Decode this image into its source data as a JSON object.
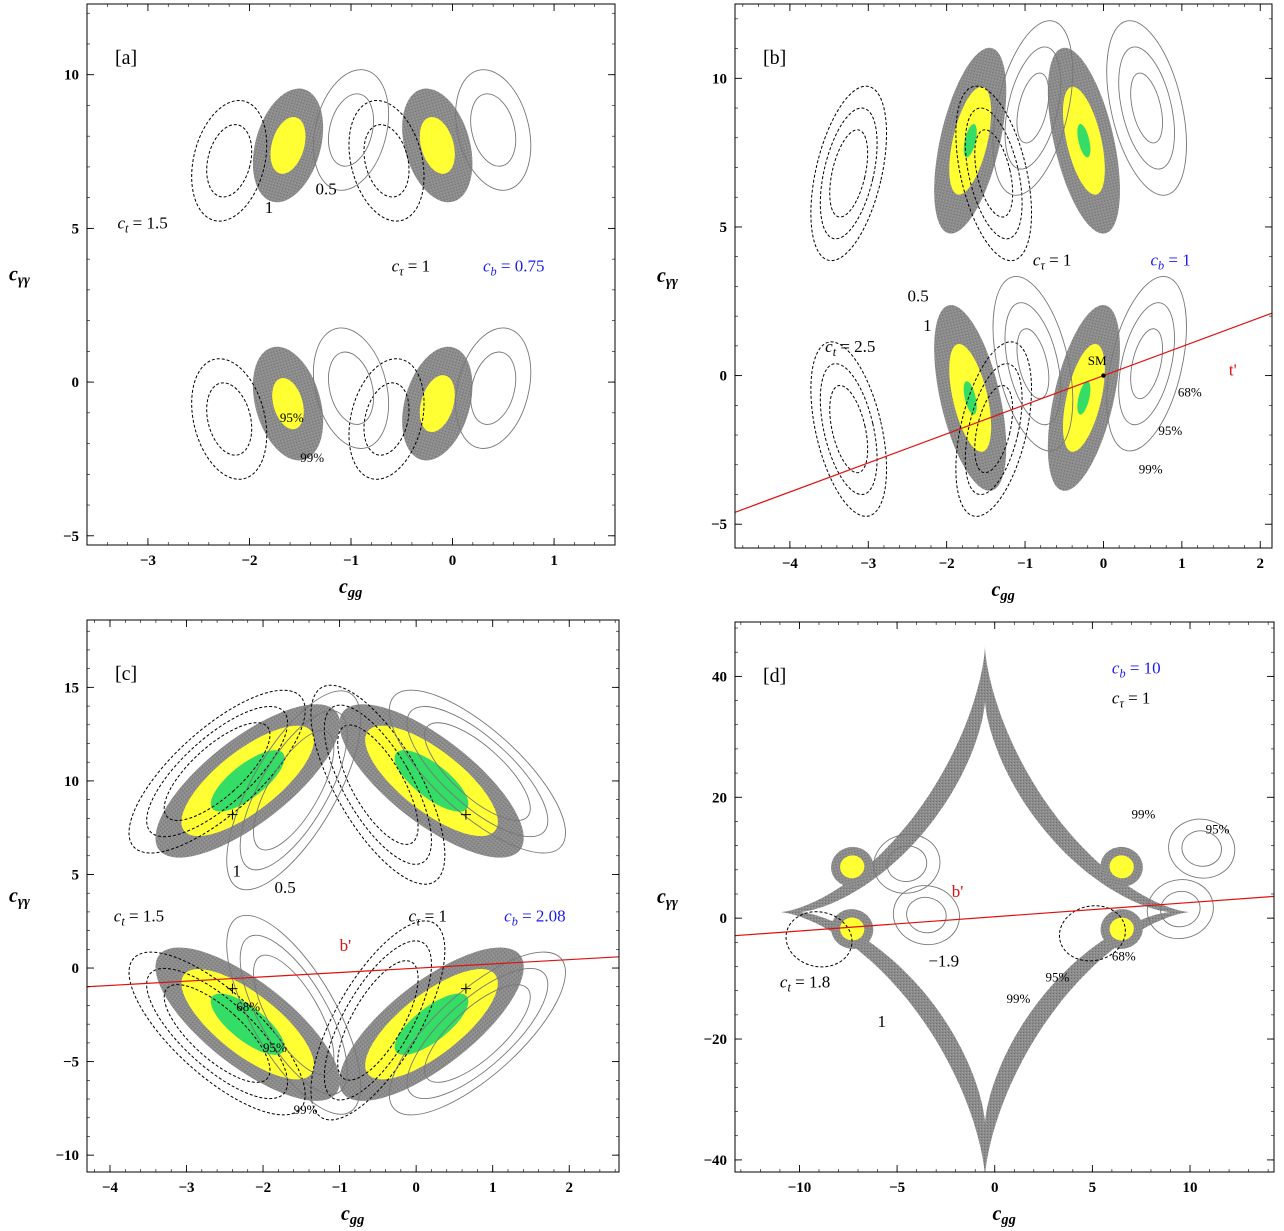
{
  "colors": {
    "dark_band": "#8c8c8c",
    "yellow_band": "#ffff33",
    "green_band": "#33dd66",
    "ref_line": "#e01010",
    "blue_text": "#1a1aee",
    "frame": "#000000"
  },
  "chart_data": [
    {
      "id": "a",
      "type": "contour",
      "panel_label": "[a]",
      "xlabel": "c_gg",
      "ylabel": "c_γγ",
      "xlim": [
        -3.6,
        1.6
      ],
      "ylim": [
        -5.3,
        12.3
      ],
      "xticks": [
        -3,
        -2,
        -1,
        0,
        1
      ],
      "yticks": [
        -5,
        0,
        5,
        10
      ],
      "texts": [
        {
          "t": "c_t = 1.5",
          "x": -3.3,
          "y": 5.0
        },
        {
          "t": "1",
          "x": -1.85,
          "y": 5.5
        },
        {
          "t": "0.5",
          "x": -1.35,
          "y": 6.1
        },
        {
          "t": "c_τ = 1",
          "x": -0.6,
          "y": 3.6
        },
        {
          "t": "c_b = 0.75",
          "x": 0.3,
          "y": 3.6,
          "blue": true
        },
        {
          "t": "95%",
          "x": -1.7,
          "y": -1.3,
          "small": true
        },
        {
          "t": "99%",
          "x": -1.5,
          "y": -2.6,
          "small": true
        }
      ],
      "regions": [
        {
          "cx": -1.62,
          "cy": 7.7,
          "rx": 0.32,
          "ry": 1.9,
          "rot": 16,
          "bands": [
            1.0,
            0.5
          ]
        },
        {
          "cx": -0.15,
          "cy": 7.7,
          "rx": 0.32,
          "ry": 1.9,
          "rot": -16,
          "bands": [
            1.0,
            0.5
          ]
        },
        {
          "cx": -1.62,
          "cy": -0.7,
          "rx": 0.32,
          "ry": 1.9,
          "rot": -16,
          "bands": [
            1.0,
            0.45
          ]
        },
        {
          "cx": -0.15,
          "cy": -0.7,
          "rx": 0.32,
          "ry": 1.9,
          "rot": 16,
          "bands": [
            1.0,
            0.5
          ]
        }
      ],
      "contours": [
        {
          "cx": -2.2,
          "cy": 7.2,
          "rx": 0.35,
          "ry": 2.0,
          "rot": 14,
          "dashed": true,
          "scales": [
            1.0,
            0.6
          ]
        },
        {
          "cx": -0.65,
          "cy": 7.2,
          "rx": 0.35,
          "ry": 2.0,
          "rot": -14,
          "dashed": true,
          "scales": [
            1.0,
            0.6
          ]
        },
        {
          "cx": -1.0,
          "cy": 8.2,
          "rx": 0.35,
          "ry": 2.0,
          "rot": 14,
          "dashed": false,
          "scales": [
            1.0,
            0.6
          ]
        },
        {
          "cx": 0.4,
          "cy": 8.2,
          "rx": 0.35,
          "ry": 2.0,
          "rot": -14,
          "dashed": false,
          "scales": [
            1.0,
            0.6
          ]
        },
        {
          "cx": -2.2,
          "cy": -1.2,
          "rx": 0.35,
          "ry": 2.0,
          "rot": -14,
          "dashed": true,
          "scales": [
            1.0,
            0.6
          ]
        },
        {
          "cx": -0.65,
          "cy": -1.2,
          "rx": 0.35,
          "ry": 2.0,
          "rot": 14,
          "dashed": true,
          "scales": [
            1.0,
            0.6
          ]
        },
        {
          "cx": -1.0,
          "cy": -0.2,
          "rx": 0.35,
          "ry": 2.0,
          "rot": -14,
          "dashed": false,
          "scales": [
            1.0,
            0.6
          ]
        },
        {
          "cx": 0.4,
          "cy": -0.2,
          "rx": 0.35,
          "ry": 2.0,
          "rot": 14,
          "dashed": false,
          "scales": [
            1.0,
            0.6
          ]
        }
      ]
    },
    {
      "id": "b",
      "type": "contour",
      "panel_label": "[b]",
      "xlabel": "c_gg",
      "ylabel": "c_γγ",
      "xlim": [
        -4.7,
        2.15
      ],
      "ylim": [
        -5.8,
        12.5
      ],
      "xticks": [
        -4,
        -3,
        -2,
        -1,
        0,
        1,
        2
      ],
      "yticks": [
        -5,
        0,
        5,
        10
      ],
      "texts": [
        {
          "t": "c_τ = 1",
          "x": -0.9,
          "y": 3.7
        },
        {
          "t": "c_b = 1",
          "x": 0.6,
          "y": 3.7,
          "blue": true
        },
        {
          "t": "0.5",
          "x": -2.5,
          "y": 2.5
        },
        {
          "t": "1",
          "x": -2.3,
          "y": 1.5
        },
        {
          "t": "c_t = 2.5",
          "x": -3.55,
          "y": 0.8
        },
        {
          "t": "t'",
          "x": 1.6,
          "y": 0.0,
          "red": true
        },
        {
          "t": "SM",
          "x": -0.2,
          "y": 0.35,
          "small": true
        },
        {
          "t": "68%",
          "x": 0.95,
          "y": -0.7,
          "small": true
        },
        {
          "t": "95%",
          "x": 0.7,
          "y": -2.0,
          "small": true
        },
        {
          "t": "99%",
          "x": 0.45,
          "y": -3.3,
          "small": true
        }
      ],
      "line": {
        "x": [
          -4.7,
          2.15
        ],
        "y": [
          -4.6,
          2.1
        ]
      },
      "points": [
        {
          "x": 0,
          "y": 0,
          "marker": "dot"
        }
      ],
      "regions": [
        {
          "cx": -1.7,
          "cy": 7.9,
          "rx": 0.38,
          "ry": 3.2,
          "rot": 13,
          "bands": [
            1.0,
            0.58,
            0.18
          ]
        },
        {
          "cx": -0.25,
          "cy": 7.9,
          "rx": 0.38,
          "ry": 3.2,
          "rot": -13,
          "bands": [
            1.0,
            0.58,
            0.18
          ]
        },
        {
          "cx": -1.7,
          "cy": -0.75,
          "rx": 0.38,
          "ry": 3.2,
          "rot": -13,
          "bands": [
            1.0,
            0.58,
            0.18
          ]
        },
        {
          "cx": -0.25,
          "cy": -0.75,
          "rx": 0.38,
          "ry": 3.2,
          "rot": 13,
          "bands": [
            1.0,
            0.58,
            0.18
          ]
        }
      ],
      "contours": [
        {
          "cx": -3.25,
          "cy": 6.8,
          "rx": 0.42,
          "ry": 3.0,
          "rot": 13,
          "dashed": true,
          "scales": [
            1.0,
            0.75,
            0.5
          ]
        },
        {
          "cx": -1.4,
          "cy": 6.8,
          "rx": 0.42,
          "ry": 3.0,
          "rot": -13,
          "dashed": true,
          "scales": [
            1.0,
            0.75,
            0.5
          ]
        },
        {
          "cx": -0.9,
          "cy": 9.0,
          "rx": 0.45,
          "ry": 3.0,
          "rot": 13,
          "dashed": false,
          "scales": [
            1.0,
            0.7,
            0.4
          ]
        },
        {
          "cx": 0.55,
          "cy": 9.0,
          "rx": 0.45,
          "ry": 3.0,
          "rot": -13,
          "dashed": false,
          "scales": [
            1.0,
            0.7,
            0.4
          ]
        },
        {
          "cx": -3.25,
          "cy": -1.8,
          "rx": 0.42,
          "ry": 3.0,
          "rot": -13,
          "dashed": true,
          "scales": [
            1.0,
            0.75,
            0.5
          ]
        },
        {
          "cx": -1.4,
          "cy": -1.8,
          "rx": 0.42,
          "ry": 3.0,
          "rot": 13,
          "dashed": true,
          "scales": [
            1.0,
            0.75,
            0.5
          ]
        },
        {
          "cx": -0.9,
          "cy": 0.4,
          "rx": 0.45,
          "ry": 3.0,
          "rot": -13,
          "dashed": false,
          "scales": [
            1.0,
            0.7,
            0.4
          ]
        },
        {
          "cx": 0.55,
          "cy": 0.4,
          "rx": 0.45,
          "ry": 3.0,
          "rot": 13,
          "dashed": false,
          "scales": [
            1.0,
            0.7,
            0.4
          ]
        }
      ]
    },
    {
      "id": "c",
      "type": "contour",
      "panel_label": "[c]",
      "xlabel": "c_gg",
      "ylabel": "c_γγ",
      "xlim": [
        -4.3,
        2.65
      ],
      "ylim": [
        -10.9,
        18.6
      ],
      "xticks": [
        -4,
        -3,
        -2,
        -1,
        0,
        1,
        2
      ],
      "yticks": [
        -10,
        -5,
        0,
        5,
        10,
        15
      ],
      "texts": [
        {
          "t": "1",
          "x": -2.4,
          "y": 4.9
        },
        {
          "t": "0.5",
          "x": -1.85,
          "y": 4.0
        },
        {
          "t": "c_t = 1.5",
          "x": -3.95,
          "y": 2.5
        },
        {
          "t": "c_τ = 1",
          "x": -0.1,
          "y": 2.5
        },
        {
          "t": "c_b = 2.08",
          "x": 1.15,
          "y": 2.5,
          "blue": true
        },
        {
          "t": "b'",
          "x": -1.0,
          "y": 0.9,
          "red": true
        },
        {
          "t": "68%",
          "x": -2.35,
          "y": -2.3,
          "small": true
        },
        {
          "t": "95%",
          "x": -2.0,
          "y": -4.5,
          "small": true
        },
        {
          "t": "99%",
          "x": -1.6,
          "y": -7.8,
          "small": true
        }
      ],
      "line": {
        "x": [
          -4.3,
          2.65
        ],
        "y": [
          -1.0,
          0.6
        ]
      },
      "points": [
        {
          "x": -2.4,
          "y": 8.2,
          "marker": "plus"
        },
        {
          "x": 0.65,
          "y": 8.2,
          "marker": "plus"
        },
        {
          "x": -2.4,
          "y": -1.1,
          "marker": "plus"
        },
        {
          "x": 0.65,
          "y": -1.1,
          "marker": "plus"
        }
      ],
      "regions": [
        {
          "cx": -2.2,
          "cy": 10.0,
          "rx": 0.55,
          "ry": 6.0,
          "rot": 52,
          "bands": [
            1.0,
            0.72,
            0.4
          ]
        },
        {
          "cx": 0.2,
          "cy": 10.0,
          "rx": 0.55,
          "ry": 6.0,
          "rot": -52,
          "bands": [
            1.0,
            0.72,
            0.4
          ]
        },
        {
          "cx": -2.2,
          "cy": -3.0,
          "rx": 0.55,
          "ry": 6.0,
          "rot": -52,
          "bands": [
            1.0,
            0.72,
            0.4
          ]
        },
        {
          "cx": 0.2,
          "cy": -3.0,
          "rx": 0.55,
          "ry": 6.0,
          "rot": 52,
          "bands": [
            1.0,
            0.72,
            0.4
          ]
        }
      ],
      "contours": [
        {
          "cx": -2.6,
          "cy": 10.5,
          "rx": 0.55,
          "ry": 6.0,
          "rot": 48,
          "dashed": true,
          "scales": [
            1.0,
            0.8,
            0.6
          ]
        },
        {
          "cx": -0.5,
          "cy": 9.8,
          "rx": 0.55,
          "ry": 6.0,
          "rot": -30,
          "dashed": true,
          "scales": [
            1.0,
            0.8,
            0.6
          ]
        },
        {
          "cx": -1.6,
          "cy": 9.5,
          "rx": 0.55,
          "ry": 6.0,
          "rot": 30,
          "dashed": false,
          "scales": [
            1.0,
            0.8,
            0.6
          ]
        },
        {
          "cx": 0.8,
          "cy": 10.5,
          "rx": 0.55,
          "ry": 6.0,
          "rot": -48,
          "dashed": false,
          "scales": [
            1.0,
            0.8,
            0.6
          ]
        },
        {
          "cx": -2.6,
          "cy": -3.5,
          "rx": 0.55,
          "ry": 6.0,
          "rot": -48,
          "dashed": true,
          "scales": [
            1.0,
            0.8,
            0.6
          ]
        },
        {
          "cx": -0.5,
          "cy": -2.8,
          "rx": 0.55,
          "ry": 6.0,
          "rot": 30,
          "dashed": true,
          "scales": [
            1.0,
            0.8,
            0.6
          ]
        },
        {
          "cx": -1.6,
          "cy": -2.5,
          "rx": 0.55,
          "ry": 6.0,
          "rot": -30,
          "dashed": false,
          "scales": [
            1.0,
            0.8,
            0.6
          ]
        },
        {
          "cx": 0.8,
          "cy": -3.5,
          "rx": 0.55,
          "ry": 6.0,
          "rot": 48,
          "dashed": false,
          "scales": [
            1.0,
            0.8,
            0.6
          ]
        }
      ]
    },
    {
      "id": "d",
      "type": "contour",
      "panel_label": "[d]",
      "xlabel": "c_gg",
      "ylabel": "c_γγ",
      "xlim": [
        -13.3,
        14.3
      ],
      "ylim": [
        -42,
        49
      ],
      "xticks": [
        -10,
        -5,
        0,
        5,
        10
      ],
      "yticks": [
        -40,
        -20,
        0,
        20,
        40
      ],
      "texts": [
        {
          "t": "c_b = 10",
          "x": 6.0,
          "y": 40.5,
          "blue": true
        },
        {
          "t": "c_τ = 1",
          "x": 6.0,
          "y": 35.5
        },
        {
          "t": "99%",
          "x": 7.0,
          "y": 16.5,
          "small": true
        },
        {
          "t": "95%",
          "x": 10.8,
          "y": 14.0,
          "small": true
        },
        {
          "t": "b'",
          "x": -2.2,
          "y": 3.5,
          "red": true
        },
        {
          "t": "c_t = 1.8",
          "x": -11.0,
          "y": -11.5
        },
        {
          "t": "−1.9",
          "x": -3.4,
          "y": -8.0
        },
        {
          "t": "1",
          "x": -6.0,
          "y": -18.0
        },
        {
          "t": "95%",
          "x": 2.6,
          "y": -10.5,
          "small": true
        },
        {
          "t": "68%",
          "x": 6.0,
          "y": -7.0,
          "small": true
        },
        {
          "t": "99%",
          "x": 0.6,
          "y": -14.0,
          "small": true
        }
      ],
      "line": {
        "x": [
          -13.3,
          14.3
        ],
        "y": [
          -2.9,
          3.6
        ]
      },
      "astroid": {
        "cx": -0.5,
        "cy": 1.0,
        "outer_x": 10.5,
        "outer_y": 44,
        "inner_x": 9.5,
        "inner_y": 35
      },
      "regions": [
        {
          "cx": -7.3,
          "cy": 8.5,
          "rx": 1.3,
          "ry": 4.5,
          "rot": 78,
          "bands": [
            0.78,
            0.45
          ]
        },
        {
          "cx": 6.5,
          "cy": 8.5,
          "rx": 1.3,
          "ry": 4.5,
          "rot": -78,
          "bands": [
            0.78,
            0.45
          ]
        },
        {
          "cx": -7.3,
          "cy": -1.8,
          "rx": 1.3,
          "ry": 4.5,
          "rot": -78,
          "bands": [
            0.78,
            0.45
          ]
        },
        {
          "cx": 6.5,
          "cy": -1.8,
          "rx": 1.3,
          "ry": 4.5,
          "rot": 78,
          "bands": [
            0.78,
            0.45
          ]
        }
      ],
      "contours": [
        {
          "cx": 10.6,
          "cy": 11.5,
          "rx": 1.5,
          "ry": 5.5,
          "rot": -78,
          "dashed": false,
          "scales": [
            1.0,
            0.6
          ]
        },
        {
          "cx": -4.5,
          "cy": 9.0,
          "rx": 1.5,
          "ry": 5.5,
          "rot": 78,
          "dashed": false,
          "scales": [
            1.0,
            0.6
          ]
        },
        {
          "cx": -3.5,
          "cy": 0.5,
          "rx": 1.5,
          "ry": 5.5,
          "rot": -78,
          "dashed": false,
          "scales": [
            1.0,
            0.6
          ]
        },
        {
          "cx": 9.5,
          "cy": 1.5,
          "rx": 1.5,
          "ry": 5.5,
          "rot": 78,
          "dashed": false,
          "scales": [
            1.0,
            0.6
          ]
        },
        {
          "cx": -9.0,
          "cy": -3.5,
          "rx": 1.4,
          "ry": 5.5,
          "rot": -78,
          "dashed": true,
          "scales": [
            1.0
          ]
        },
        {
          "cx": 5.0,
          "cy": -2.5,
          "rx": 1.4,
          "ry": 5.5,
          "rot": 78,
          "dashed": true,
          "scales": [
            1.0
          ]
        }
      ]
    }
  ]
}
